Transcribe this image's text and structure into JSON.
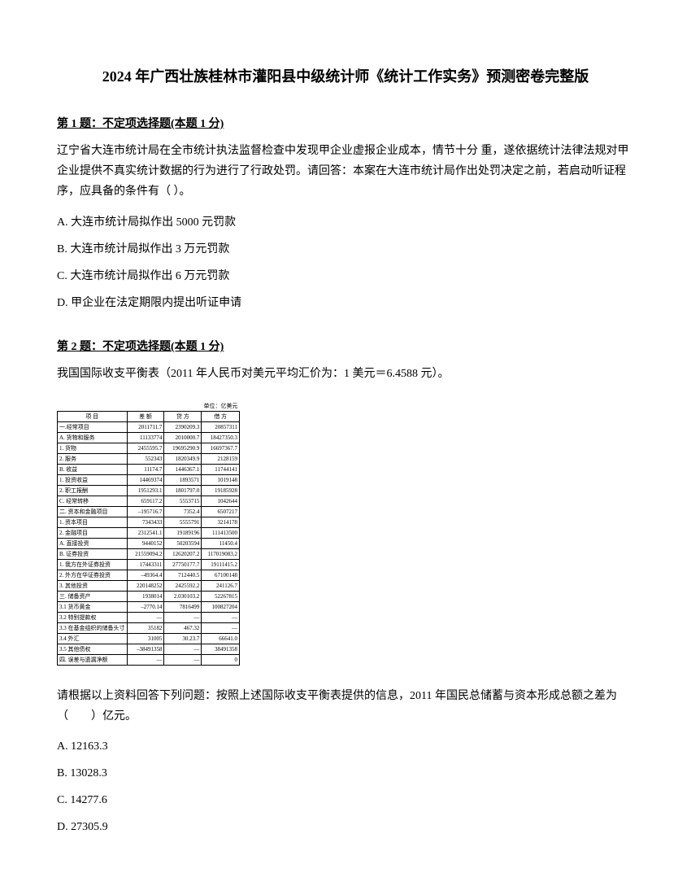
{
  "title": "2024 年广西壮族桂林市灌阳县中级统计师《统计工作实务》预测密卷完整版",
  "q1": {
    "header": "第 1 题：不定项选择题(本题 1 分)",
    "body": "辽宁省大连市统计局在全市统计执法监督检查中发现甲企业虚报企业成本，情节十分 重，遂依据统计法律法规对甲企业提供不真实统计数据的行为进行了行政处罚。请回答：本案在大连市统计局作出处罚决定之前，若启动听证程序，应具备的条件有（ ）。",
    "optA": "A. 大连市统计局拟作出 5000 元罚款",
    "optB": "B. 大连市统计局拟作出 3 万元罚款",
    "optC": "C. 大连市统计局拟作出 6 万元罚款",
    "optD": "D. 甲企业在法定期限内提出听证申请"
  },
  "q2": {
    "header": "第 2 题：不定项选择题(本题 1 分)",
    "body": "我国国际收支平衡表（2011 年人民币对美元平均汇价为：1 美元＝6.4588 元）。",
    "followup": "请根据以上资料回答下列问题：按照上述国际收支平衡表提供的信息，2011 年国民总储蓄与资本形成总额之差为（　　）亿元。",
    "optA": "A. 12163.3",
    "optB": "B. 13028.3",
    "optC": "C. 14277.6",
    "optD": "D. 27305.9"
  },
  "table": {
    "unit": "单位：亿美元",
    "headers": [
      "项 目",
      "差 额",
      "贷 方",
      "借 方"
    ],
    "rows": [
      [
        "一.经常项目",
        "2011711.7",
        "2390209.3",
        "20857311"
      ],
      [
        "A. 货物和服务",
        "11133774",
        "2010000.7",
        "18427350.3"
      ],
      [
        "1. 货物",
        "2455595.7",
        "19695290.9",
        "16697367.7"
      ],
      [
        "2. 服务",
        "552343",
        "1820349.9",
        "2128159"
      ],
      [
        "B. 收益",
        "11174.7",
        "1446367.1",
        "11744141"
      ],
      [
        "1. 投资收益",
        "14469374",
        "1893571",
        "1019148"
      ],
      [
        "2. 职工报酬",
        "1951293.1",
        "1801797.0",
        "19185928"
      ],
      [
        "C. 经常转移",
        "659117.2",
        "5553715",
        "1042644"
      ],
      [
        "二. 资本和金融项目",
        "–195716.7",
        "7352.4",
        "6507217"
      ],
      [
        "1. 资本项目",
        "7343433",
        "5555791",
        "3214178"
      ],
      [
        "2. 金融项目",
        "2312541.1",
        "19189196",
        "111413500"
      ],
      [
        "A. 直接投资",
        "9440152",
        "50203594",
        "11450.4"
      ],
      [
        "B. 证券投资",
        "21559094.2",
        "12620207.2",
        "117019083.2"
      ],
      [
        "1. 我方在外证券投资",
        "17443311",
        "27750177.7",
        "19111415.2"
      ],
      [
        "2. 外方在华证券投资",
        "–49364.4",
        "712440.5",
        "67100148"
      ],
      [
        "3. 其他投资",
        "220148252",
        "2425592.2",
        "241126.7"
      ],
      [
        "三. 储备资产",
        "1938014",
        "2.030103.2",
        "52267815"
      ],
      [
        "3.1 货币黄金",
        "–2770.14",
        "7816499",
        "100827204"
      ],
      [
        "3.2 特别提款权",
        "—",
        "—",
        "—"
      ],
      [
        "3.3 在基金组织的储备头寸",
        "35182",
        "467.32",
        "—"
      ],
      [
        "3.4 外汇",
        "31005",
        "30.23.7",
        "66641.0"
      ],
      [
        "3.5 其他债权",
        "–38491358",
        "—",
        "38491358"
      ],
      [
        "四. 误差与遗漏净额",
        "—",
        "—",
        "0"
      ]
    ]
  }
}
